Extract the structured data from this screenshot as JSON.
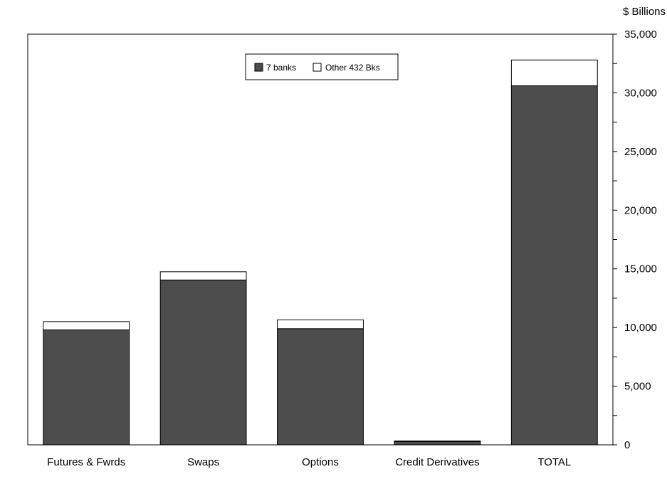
{
  "chart_data": {
    "type": "bar",
    "stacked": true,
    "categories": [
      "Futures & Fwrds",
      "Swaps",
      "Options",
      "Credit Derivatives",
      "TOTAL"
    ],
    "series": [
      {
        "name": "7 banks",
        "values": [
          9800,
          14050,
          9900,
          280,
          30600
        ],
        "color": "#4d4d4d"
      },
      {
        "name": "Other 432 Bks",
        "values": [
          700,
          700,
          750,
          50,
          2200
        ],
        "color": "#ffffff"
      }
    ],
    "ylabel": "$ Billions",
    "ylim": [
      0,
      35000
    ],
    "yticks": [
      0,
      5000,
      10000,
      15000,
      20000,
      25000,
      30000,
      35000
    ],
    "ytick_labels": [
      "0",
      "5,000",
      "10,000",
      "15,000",
      "20,000",
      "25,000",
      "30,000",
      "35,000"
    ],
    "y_axis_side": "right",
    "grid": false,
    "legend_position": "top-center"
  }
}
